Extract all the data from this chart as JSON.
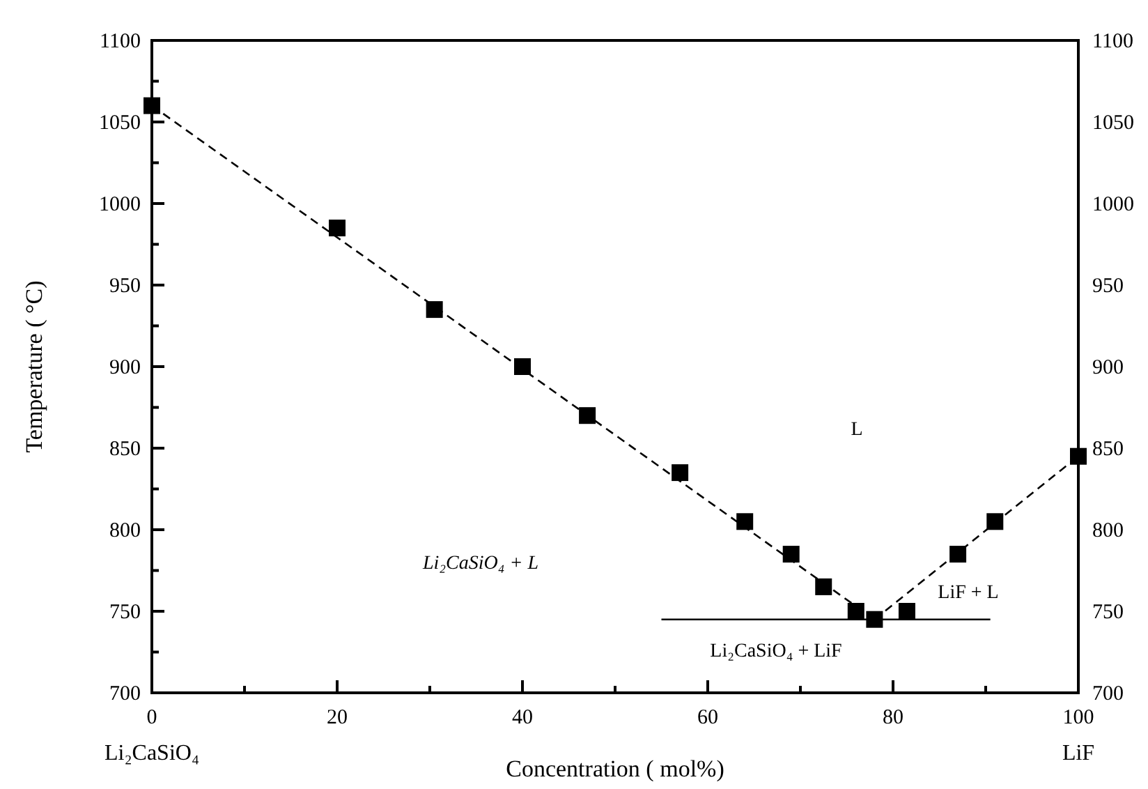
{
  "chart_data": {
    "type": "scatter",
    "xlabel": "Concentration ( mol%)",
    "ylabel": "Temperature ( °C)",
    "xlim": [
      0,
      100
    ],
    "xticks": [
      0,
      {
        "value": 10,
        "label": null
      },
      20,
      {
        "value": 30,
        "label": null
      },
      40,
      {
        "value": 50,
        "label": null
      },
      60,
      {
        "value": 70,
        "label": null
      },
      80,
      {
        "value": 90,
        "label": null
      },
      100
    ],
    "ylim": [
      700,
      1100
    ],
    "yticks": [
      700,
      {
        "value": 725,
        "label": null
      },
      750,
      {
        "value": 775,
        "label": null
      },
      800,
      {
        "value": 825,
        "label": null
      },
      850,
      {
        "value": 875,
        "label": null
      },
      900,
      {
        "value": 925,
        "label": null
      },
      950,
      {
        "value": 975,
        "label": null
      },
      1000,
      {
        "value": 1025,
        "label": null
      },
      1050,
      {
        "value": 1075,
        "label": null
      },
      1100
    ],
    "y2lim": [
      700,
      1100
    ],
    "y2ticks": [
      700,
      750,
      800,
      850,
      900,
      950,
      1000,
      1050,
      1100
    ],
    "grid": false,
    "series": [
      {
        "type": "line",
        "color": "#000000",
        "line_style": "dashed",
        "marker": "none",
        "x": [
          0,
          78
        ],
        "values": [
          1060,
          745
        ]
      },
      {
        "type": "line",
        "color": "#000000",
        "line_style": "dashed",
        "marker": "none",
        "x": [
          78,
          100
        ],
        "values": [
          745,
          845
        ]
      },
      {
        "type": "line",
        "color": "#000000",
        "line_style": "solid",
        "marker": "none",
        "x": [
          55,
          90.5
        ],
        "values": [
          745,
          745
        ]
      },
      {
        "color": "#000000",
        "marker": "square",
        "x": [
          0,
          20,
          30.5,
          40,
          47,
          57,
          64,
          69,
          72.5,
          76,
          78,
          81.5,
          87,
          91,
          100
        ],
        "values": [
          1060,
          985,
          935,
          900,
          870,
          835,
          805,
          785,
          765,
          750,
          745,
          750,
          785,
          805,
          845
        ]
      }
    ],
    "annotations": [
      "L",
      "Li₂CaSiO₄ + L",
      "LiF + L",
      "Li₂CaSiO₄ + LiF",
      "Li₂CaSiO₄",
      "LiF"
    ]
  }
}
